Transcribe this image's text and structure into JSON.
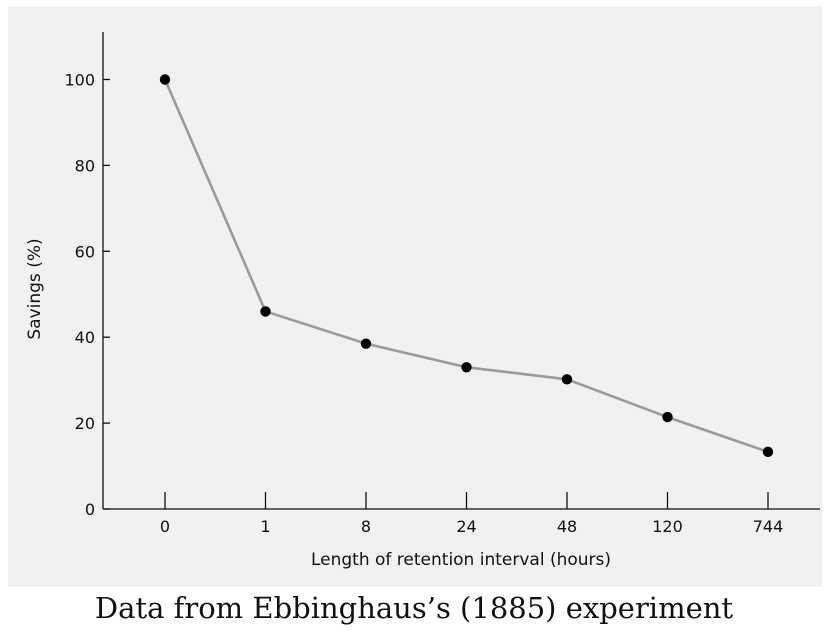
{
  "caption": "Data from Ebbinghaus’s (1885) experiment",
  "chart_data": {
    "type": "line",
    "title": "",
    "xlabel": "Length of retention interval (hours)",
    "ylabel": "Savings (%)",
    "categories": [
      "0",
      "1",
      "8",
      "24",
      "48",
      "120",
      "744"
    ],
    "series": [
      {
        "name": "Savings",
        "values": [
          100,
          46,
          38.5,
          33,
          30.2,
          21.4,
          13.3
        ]
      }
    ],
    "ylim": [
      0,
      110
    ],
    "yticks": [
      0,
      20,
      40,
      60,
      80,
      100
    ],
    "grid": false,
    "legend": "none",
    "line_color": "#9a9a9a",
    "marker_color": "#000000",
    "panel_color": "#f1f1f1"
  }
}
